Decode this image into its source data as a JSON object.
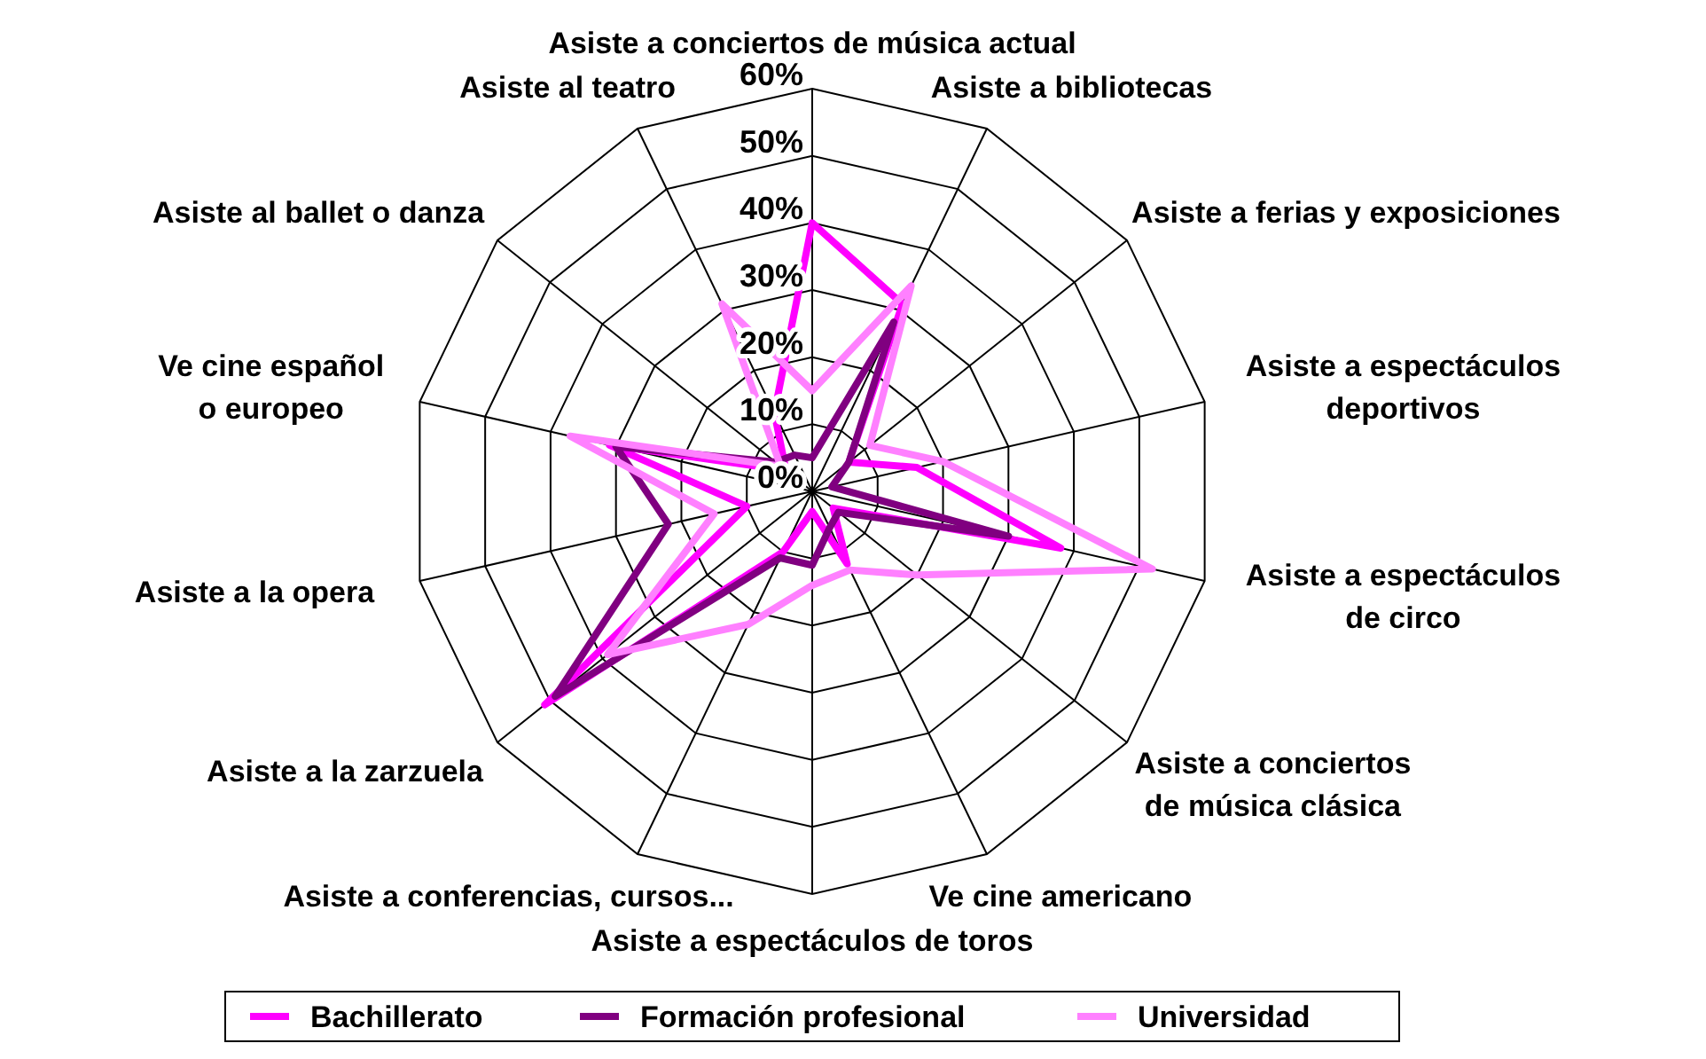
{
  "chart_data": {
    "type": "radar",
    "categories": [
      "Asiste a conciertos de música actual",
      "Asiste a bibliotecas",
      "Asiste a ferias y exposiciones",
      "Asiste a espectáculos\ndeportivos",
      "Asiste a espectáculos\nde circo",
      "Asiste a conciertos\nde música clásica",
      "Ve cine americano",
      "Asiste a espectáculos de toros",
      "Asiste a conferencias, cursos...",
      "Asiste a la zarzuela",
      "Asiste a la opera",
      "Ve cine español\no europeo",
      "Asiste al ballet o danza",
      "Asiste al teatro"
    ],
    "series": [
      {
        "name": "Bachillerato",
        "color": "#ff00ff",
        "values": [
          40,
          31,
          7,
          16,
          38,
          4,
          12,
          3,
          10,
          51,
          10,
          31,
          5,
          13
        ]
      },
      {
        "name": "Formación profesional",
        "color": "#800080",
        "values": [
          5,
          28,
          7,
          3,
          30,
          5,
          6,
          11,
          11,
          49,
          22,
          30,
          7,
          6
        ]
      },
      {
        "name": "Universidad",
        "color": "#ff80ff",
        "values": [
          15,
          34,
          11,
          20,
          52,
          20,
          13,
          14,
          22,
          39,
          15,
          37,
          6,
          31
        ]
      }
    ],
    "ylim": [
      0,
      60
    ],
    "yticks": [
      {
        "value": 0,
        "label": "0%"
      },
      {
        "value": 10,
        "label": "10%"
      },
      {
        "value": 20,
        "label": "20%"
      },
      {
        "value": 30,
        "label": "30%"
      },
      {
        "value": 40,
        "label": "40%"
      },
      {
        "value": 50,
        "label": "50%"
      },
      {
        "value": 60,
        "label": "60%"
      }
    ],
    "grid": true,
    "legend": "bottom",
    "marker": "none",
    "line_style": "solid"
  }
}
